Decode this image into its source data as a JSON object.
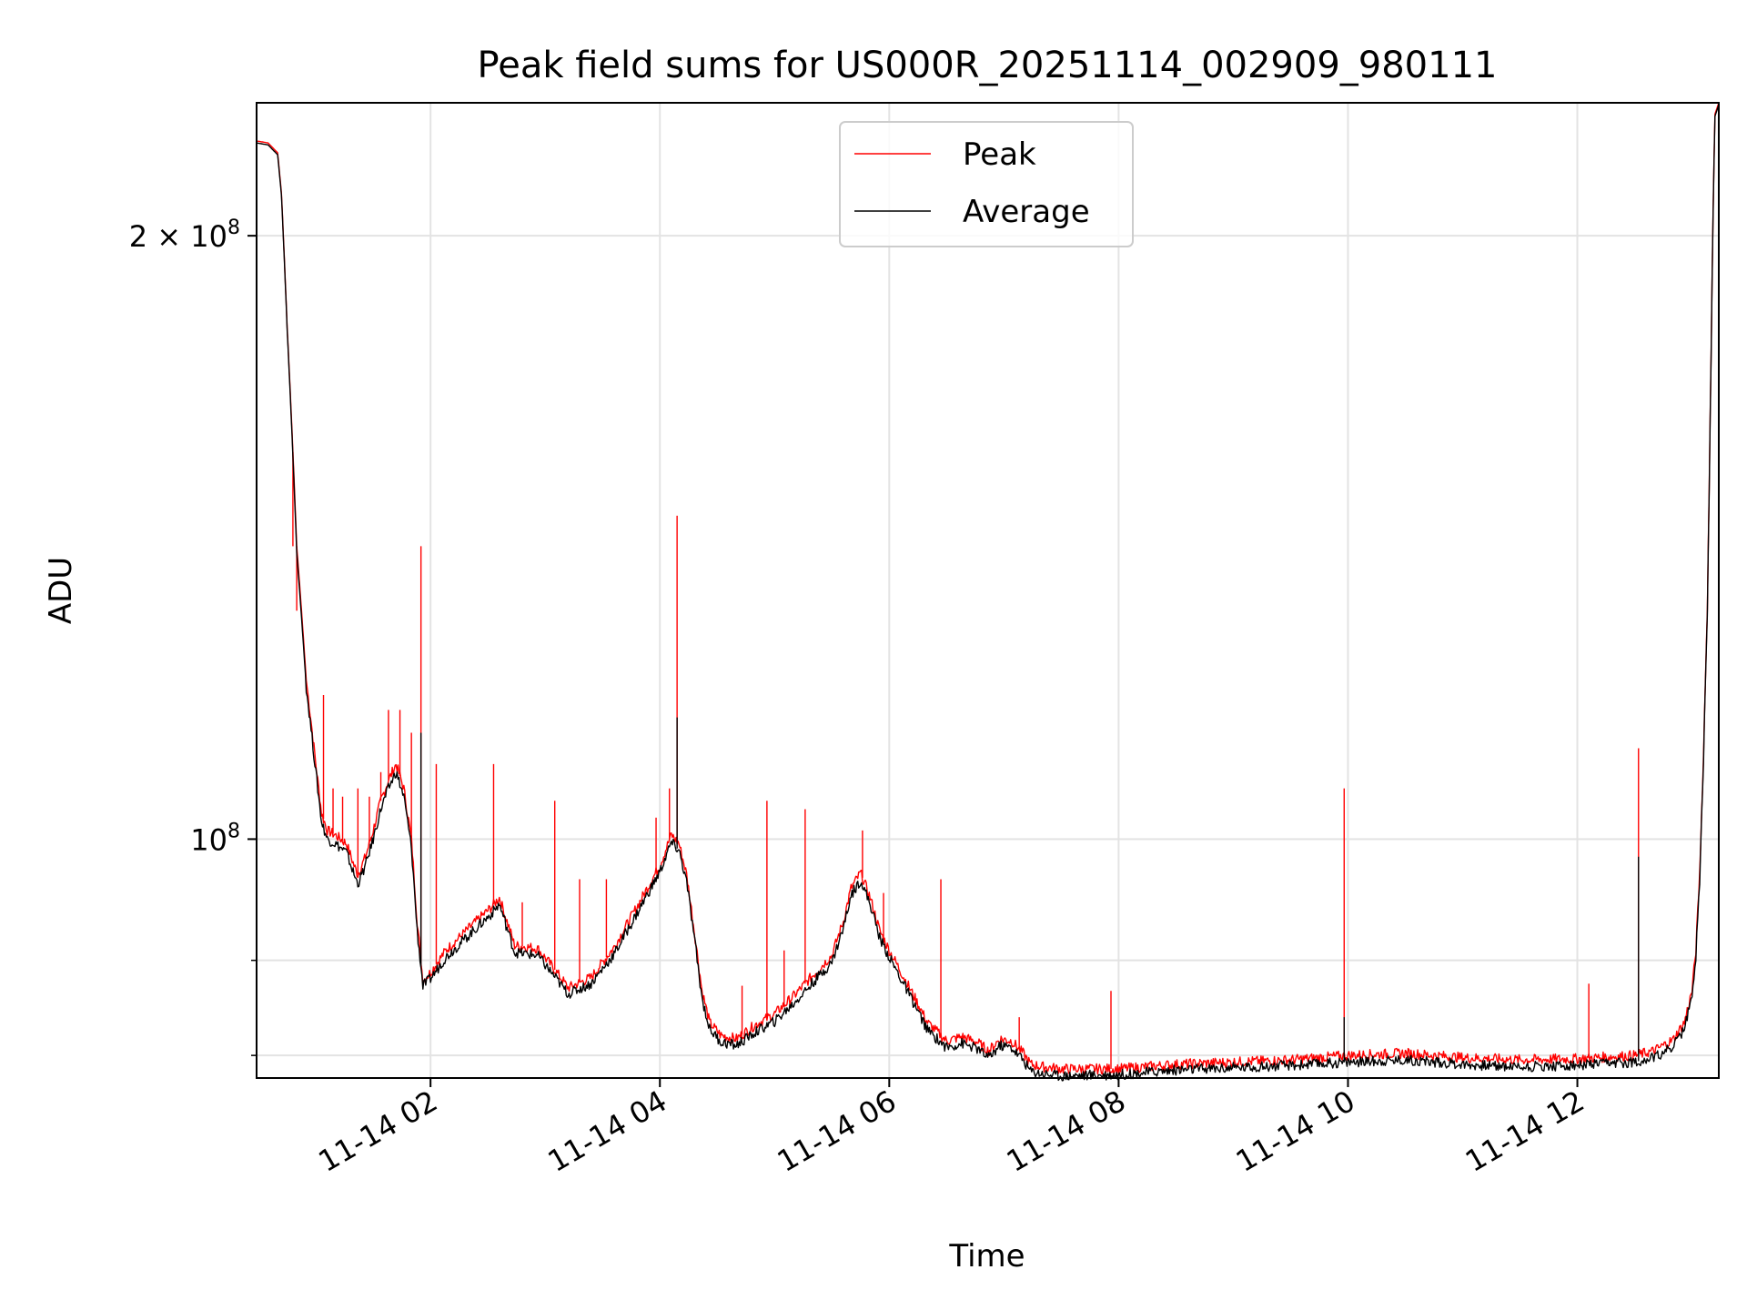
{
  "chart_data": {
    "type": "line",
    "title": "Peak field sums for US000R_20251114_002909_980111",
    "xlabel": "Time",
    "ylabel": "ADU",
    "x_axis_type": "datetime",
    "y_scale": "log",
    "xlim": [
      "2025-11-14 00:29",
      "2025-11-14 13:14"
    ],
    "ylim": [
      76000000,
      233000000
    ],
    "grid": true,
    "legend_position": "top-center",
    "x_tick_labels": [
      {
        "value": "2025-11-14 02:00",
        "label": "11-14 02"
      },
      {
        "value": "2025-11-14 04:00",
        "label": "11-14 04"
      },
      {
        "value": "2025-11-14 06:00",
        "label": "11-14 06"
      },
      {
        "value": "2025-11-14 08:00",
        "label": "11-14 08"
      },
      {
        "value": "2025-11-14 10:00",
        "label": "11-14 10"
      },
      {
        "value": "2025-11-14 12:00",
        "label": "11-14 12"
      }
    ],
    "y_major_ticks": [
      {
        "value": 100000000,
        "label_base": "10",
        "label_exp": "8"
      },
      {
        "value": 200000000,
        "label_coef": "2 × ",
        "label_base": "10",
        "label_exp": "8"
      }
    ],
    "y_minor_ticks": [
      78000000,
      87000000
    ],
    "series": [
      {
        "name": "Peak",
        "color": "#ff0000",
        "points": [
          [
            "00:29",
            223000000
          ],
          [
            "00:35",
            222500000
          ],
          [
            "00:40",
            220000000
          ],
          [
            "00:42",
            210000000
          ],
          [
            "00:45",
            180000000
          ],
          [
            "00:50",
            140000000
          ],
          [
            "00:55",
            120000000
          ],
          [
            "01:00",
            109000000
          ],
          [
            "01:03",
            103000000
          ],
          [
            "01:06",
            101000000
          ],
          [
            "01:10",
            100500000
          ],
          [
            "01:13",
            100000000
          ],
          [
            "01:16",
            99500000
          ],
          [
            "01:20",
            97000000
          ],
          [
            "01:22",
            96000000
          ],
          [
            "01:26",
            98000000
          ],
          [
            "01:30",
            101000000
          ],
          [
            "01:34",
            104500000
          ],
          [
            "01:38",
            107000000
          ],
          [
            "01:42",
            109000000
          ],
          [
            "01:46",
            106000000
          ],
          [
            "01:50",
            100000000
          ],
          [
            "01:53",
            91000000
          ],
          [
            "01:56",
            85000000
          ],
          [
            "02:00",
            85800000
          ],
          [
            "02:08",
            88000000
          ],
          [
            "02:16",
            89500000
          ],
          [
            "02:24",
            91000000
          ],
          [
            "02:32",
            92500000
          ],
          [
            "02:36",
            93500000
          ],
          [
            "02:40",
            91000000
          ],
          [
            "02:44",
            88500000
          ],
          [
            "02:56",
            88200000
          ],
          [
            "03:04",
            86300000
          ],
          [
            "03:12",
            84300000
          ],
          [
            "03:24",
            85300000
          ],
          [
            "03:36",
            88300000
          ],
          [
            "03:48",
            92500000
          ],
          [
            "04:00",
            97000000
          ],
          [
            "04:06",
            100500000
          ],
          [
            "04:10",
            99500000
          ],
          [
            "04:14",
            96000000
          ],
          [
            "04:18",
            90000000
          ],
          [
            "04:22",
            84000000
          ],
          [
            "04:26",
            81000000
          ],
          [
            "04:32",
            79800000
          ],
          [
            "04:40",
            79500000
          ],
          [
            "04:50",
            80800000
          ],
          [
            "05:00",
            81800000
          ],
          [
            "05:10",
            83500000
          ],
          [
            "05:20",
            85500000
          ],
          [
            "05:30",
            87500000
          ],
          [
            "05:36",
            91000000
          ],
          [
            "05:40",
            94500000
          ],
          [
            "05:45",
            96200000
          ],
          [
            "05:50",
            93500000
          ],
          [
            "05:55",
            90000000
          ],
          [
            "06:00",
            88000000
          ],
          [
            "06:10",
            84500000
          ],
          [
            "06:20",
            81000000
          ],
          [
            "06:30",
            79300000
          ],
          [
            "06:38",
            79700000
          ],
          [
            "06:46",
            79200000
          ],
          [
            "06:52",
            78400000
          ],
          [
            "06:58",
            79500000
          ],
          [
            "07:04",
            79300000
          ],
          [
            "07:10",
            78200000
          ],
          [
            "07:14",
            77200000
          ],
          [
            "07:20",
            77000000
          ],
          [
            "07:30",
            76800000
          ],
          [
            "08:00",
            76800000
          ],
          [
            "08:30",
            77200000
          ],
          [
            "09:00",
            77400000
          ],
          [
            "09:30",
            77600000
          ],
          [
            "10:00",
            78000000
          ],
          [
            "10:30",
            78200000
          ],
          [
            "11:00",
            77800000
          ],
          [
            "11:30",
            77600000
          ],
          [
            "12:00",
            77700000
          ],
          [
            "12:30",
            78000000
          ],
          [
            "12:40",
            78400000
          ],
          [
            "12:50",
            79400000
          ],
          [
            "12:56",
            81000000
          ],
          [
            "13:00",
            84000000
          ],
          [
            "13:02",
            88000000
          ],
          [
            "13:04",
            96000000
          ],
          [
            "13:06",
            110000000
          ],
          [
            "13:08",
            130000000
          ],
          [
            "13:09",
            150000000
          ],
          [
            "13:10",
            175000000
          ],
          [
            "13:11",
            205000000
          ],
          [
            "13:12",
            230000000
          ],
          [
            "13:14",
            233000000
          ]
        ],
        "spikes": [
          [
            "00:48",
            140000000
          ],
          [
            "00:50",
            130000000
          ],
          [
            "01:04",
            118000000
          ],
          [
            "01:09",
            106000000
          ],
          [
            "01:14",
            105000000
          ],
          [
            "01:22",
            106000000
          ],
          [
            "01:28",
            105000000
          ],
          [
            "01:34",
            108000000
          ],
          [
            "01:38",
            116000000
          ],
          [
            "01:44",
            116000000
          ],
          [
            "01:50",
            113000000
          ],
          [
            "01:55",
            140000000
          ],
          [
            "02:03",
            109000000
          ],
          [
            "02:33",
            109000000
          ],
          [
            "02:48",
            93000000
          ],
          [
            "03:05",
            104500000
          ],
          [
            "03:18",
            95500000
          ],
          [
            "03:32",
            95500000
          ],
          [
            "03:58",
            102500000
          ],
          [
            "04:05",
            106000000
          ],
          [
            "04:09",
            145000000
          ],
          [
            "04:21",
            85500000
          ],
          [
            "04:43",
            84500000
          ],
          [
            "04:56",
            104500000
          ],
          [
            "05:05",
            88000000
          ],
          [
            "05:16",
            103500000
          ],
          [
            "05:46",
            101000000
          ],
          [
            "05:57",
            94000000
          ],
          [
            "06:27",
            95500000
          ],
          [
            "07:08",
            81500000
          ],
          [
            "07:56",
            84000000
          ],
          [
            "09:58",
            106000000
          ],
          [
            "12:06",
            84700000
          ],
          [
            "12:32",
            111000000
          ]
        ]
      },
      {
        "name": "Average",
        "color": "#000000",
        "points": [
          [
            "00:29",
            222500000
          ],
          [
            "00:35",
            222000000
          ],
          [
            "00:40",
            219500000
          ],
          [
            "00:42",
            209500000
          ],
          [
            "00:45",
            179500000
          ],
          [
            "00:50",
            139000000
          ],
          [
            "00:55",
            119000000
          ],
          [
            "01:00",
            108000000
          ],
          [
            "01:03",
            102000000
          ],
          [
            "01:06",
            100000000
          ],
          [
            "01:10",
            99500000
          ],
          [
            "01:13",
            99000000
          ],
          [
            "01:16",
            98500000
          ],
          [
            "01:20",
            96000000
          ],
          [
            "01:22",
            95000000
          ],
          [
            "01:26",
            97000000
          ],
          [
            "01:30",
            100000000
          ],
          [
            "01:34",
            103500000
          ],
          [
            "01:38",
            106000000
          ],
          [
            "01:42",
            108000000
          ],
          [
            "01:46",
            105000000
          ],
          [
            "01:50",
            99000000
          ],
          [
            "01:53",
            90000000
          ],
          [
            "01:56",
            84500000
          ],
          [
            "02:00",
            85200000
          ],
          [
            "02:08",
            87300000
          ],
          [
            "02:16",
            88800000
          ],
          [
            "02:24",
            90300000
          ],
          [
            "02:32",
            91800000
          ],
          [
            "02:36",
            92800000
          ],
          [
            "02:40",
            90300000
          ],
          [
            "02:44",
            87800000
          ],
          [
            "02:56",
            87500000
          ],
          [
            "03:04",
            85600000
          ],
          [
            "03:12",
            83700000
          ],
          [
            "03:24",
            84700000
          ],
          [
            "03:36",
            87600000
          ],
          [
            "03:48",
            91800000
          ],
          [
            "04:00",
            96300000
          ],
          [
            "04:06",
            99600000
          ],
          [
            "04:10",
            98700000
          ],
          [
            "04:14",
            95200000
          ],
          [
            "04:18",
            89300000
          ],
          [
            "04:22",
            83300000
          ],
          [
            "04:26",
            80400000
          ],
          [
            "04:32",
            79200000
          ],
          [
            "04:40",
            78900000
          ],
          [
            "04:50",
            80100000
          ],
          [
            "05:00",
            81100000
          ],
          [
            "05:10",
            82800000
          ],
          [
            "05:20",
            84800000
          ],
          [
            "05:30",
            86800000
          ],
          [
            "05:36",
            90300000
          ],
          [
            "05:40",
            93800000
          ],
          [
            "05:45",
            95400000
          ],
          [
            "05:50",
            92800000
          ],
          [
            "05:55",
            89300000
          ],
          [
            "06:00",
            87300000
          ],
          [
            "06:10",
            83800000
          ],
          [
            "06:20",
            80300000
          ],
          [
            "06:30",
            78700000
          ],
          [
            "06:38",
            79100000
          ],
          [
            "06:46",
            78600000
          ],
          [
            "06:52",
            77800000
          ],
          [
            "06:58",
            78900000
          ],
          [
            "07:04",
            78700000
          ],
          [
            "07:10",
            77600000
          ],
          [
            "07:14",
            76600000
          ],
          [
            "07:20",
            76400000
          ],
          [
            "07:30",
            76200000
          ],
          [
            "08:00",
            76300000
          ],
          [
            "08:30",
            76700000
          ],
          [
            "09:00",
            76900000
          ],
          [
            "09:30",
            77100000
          ],
          [
            "10:00",
            77400000
          ],
          [
            "10:30",
            77600000
          ],
          [
            "11:00",
            77200000
          ],
          [
            "11:30",
            77000000
          ],
          [
            "12:00",
            77100000
          ],
          [
            "12:30",
            77400000
          ],
          [
            "12:40",
            77800000
          ],
          [
            "12:50",
            78800000
          ],
          [
            "12:56",
            80400000
          ],
          [
            "13:00",
            83400000
          ],
          [
            "13:02",
            87400000
          ],
          [
            "13:04",
            95400000
          ],
          [
            "13:06",
            109400000
          ],
          [
            "13:08",
            129400000
          ],
          [
            "13:09",
            149400000
          ],
          [
            "13:10",
            174400000
          ],
          [
            "13:11",
            204400000
          ],
          [
            "13:12",
            229400000
          ],
          [
            "13:14",
            232500000
          ]
        ],
        "spikes": [
          [
            "01:55",
            113000000
          ],
          [
            "04:09",
            115000000
          ],
          [
            "09:58",
            81500000
          ],
          [
            "12:32",
            98000000
          ]
        ]
      }
    ]
  }
}
